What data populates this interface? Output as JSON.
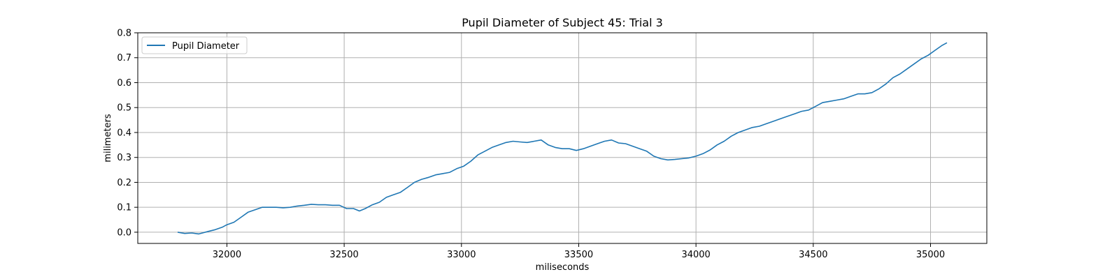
{
  "chart_data": {
    "type": "line",
    "title": "Pupil Diameter of Subject 45: Trial 3",
    "xlabel": "miliseconds",
    "ylabel": "milimeters",
    "xlim": [
      31620,
      35240
    ],
    "ylim": [
      -0.045,
      0.8
    ],
    "xticks": [
      32000,
      32500,
      33000,
      33500,
      34000,
      34500,
      35000
    ],
    "yticks": [
      0.0,
      0.1,
      0.2,
      0.3,
      0.4,
      0.5,
      0.6,
      0.7,
      0.8
    ],
    "ytick_labels": [
      "0.0",
      "0.1",
      "0.2",
      "0.3",
      "0.4",
      "0.5",
      "0.6",
      "0.7",
      "0.8"
    ],
    "grid": true,
    "legend_position": "upper-left",
    "series": [
      {
        "name": "Pupil Diameter",
        "color": "#1f77b4",
        "x": [
          31790,
          31820,
          31850,
          31880,
          31900,
          31920,
          31950,
          31980,
          32000,
          32030,
          32060,
          32090,
          32120,
          32150,
          32180,
          32210,
          32240,
          32270,
          32300,
          32330,
          32360,
          32390,
          32420,
          32450,
          32480,
          32510,
          32540,
          32565,
          32590,
          32620,
          32650,
          32680,
          32710,
          32740,
          32770,
          32800,
          32830,
          32860,
          32890,
          32920,
          32950,
          32980,
          33010,
          33040,
          33070,
          33100,
          33130,
          33160,
          33190,
          33220,
          33250,
          33280,
          33310,
          33340,
          33370,
          33400,
          33430,
          33460,
          33490,
          33520,
          33550,
          33580,
          33610,
          33640,
          33670,
          33700,
          33730,
          33760,
          33790,
          33820,
          33850,
          33880,
          33910,
          33940,
          33970,
          34000,
          34030,
          34060,
          34090,
          34120,
          34150,
          34180,
          34210,
          34240,
          34270,
          34300,
          34330,
          34360,
          34390,
          34420,
          34450,
          34480,
          34510,
          34540,
          34570,
          34600,
          34630,
          34660,
          34690,
          34720,
          34750,
          34780,
          34810,
          34840,
          34870,
          34900,
          34930,
          34960,
          34990,
          35020,
          35050,
          35070
        ],
        "y": [
          0.0,
          -0.005,
          -0.003,
          -0.007,
          -0.002,
          0.003,
          0.01,
          0.02,
          0.03,
          0.04,
          0.06,
          0.08,
          0.09,
          0.1,
          0.1,
          0.1,
          0.098,
          0.1,
          0.105,
          0.108,
          0.112,
          0.11,
          0.11,
          0.108,
          0.108,
          0.095,
          0.095,
          0.085,
          0.095,
          0.11,
          0.12,
          0.14,
          0.15,
          0.16,
          0.18,
          0.2,
          0.212,
          0.22,
          0.23,
          0.235,
          0.24,
          0.255,
          0.265,
          0.285,
          0.31,
          0.325,
          0.34,
          0.35,
          0.36,
          0.365,
          0.362,
          0.36,
          0.365,
          0.37,
          0.35,
          0.34,
          0.335,
          0.335,
          0.328,
          0.335,
          0.345,
          0.355,
          0.365,
          0.37,
          0.358,
          0.355,
          0.345,
          0.335,
          0.325,
          0.305,
          0.295,
          0.29,
          0.292,
          0.295,
          0.298,
          0.305,
          0.315,
          0.33,
          0.35,
          0.365,
          0.385,
          0.4,
          0.41,
          0.42,
          0.425,
          0.435,
          0.445,
          0.455,
          0.465,
          0.475,
          0.485,
          0.49,
          0.505,
          0.52,
          0.525,
          0.53,
          0.535,
          0.545,
          0.555,
          0.555,
          0.56,
          0.575,
          0.595,
          0.62,
          0.635,
          0.655,
          0.675,
          0.695,
          0.71,
          0.73,
          0.75,
          0.76
        ]
      }
    ]
  }
}
